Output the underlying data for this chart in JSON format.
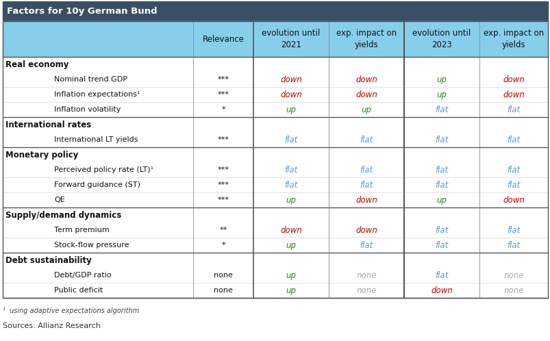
{
  "title": "Factors for 10y German Bund",
  "title_bg": "#3a4f63",
  "title_color": "#ffffff",
  "header_bg": "#87ceeb",
  "sections": [
    {
      "name": "Real economy",
      "rows": [
        {
          "factor": "Nominal trend GDP",
          "relevance": "***",
          "evo2021": "down",
          "evo2021_color": "#cc0000",
          "imp2021": "down",
          "imp2021_color": "#cc0000",
          "evo2023": "up",
          "evo2023_color": "#228B22",
          "imp2023": "down",
          "imp2023_color": "#cc0000"
        },
        {
          "factor": "Inflation expectations¹",
          "relevance": "***",
          "evo2021": "down",
          "evo2021_color": "#cc0000",
          "imp2021": "down",
          "imp2021_color": "#cc0000",
          "evo2023": "up",
          "evo2023_color": "#228B22",
          "imp2023": "down",
          "imp2023_color": "#cc0000"
        },
        {
          "factor": "Inflation volatility",
          "relevance": "*",
          "evo2021": "up",
          "evo2021_color": "#228B22",
          "imp2021": "up",
          "imp2021_color": "#228B22",
          "evo2023": "flat",
          "evo2023_color": "#5b9bd5",
          "imp2023": "flat",
          "imp2023_color": "#5b9bd5"
        }
      ]
    },
    {
      "name": "International rates",
      "rows": [
        {
          "factor": "International LT yields",
          "relevance": "***",
          "evo2021": "flat",
          "evo2021_color": "#5b9bd5",
          "imp2021": "flat",
          "imp2021_color": "#5b9bd5",
          "evo2023": "flat",
          "evo2023_color": "#5b9bd5",
          "imp2023": "flat",
          "imp2023_color": "#5b9bd5"
        }
      ]
    },
    {
      "name": "Monetary policy",
      "rows": [
        {
          "factor": "Perceived policy rate (LT)¹",
          "relevance": "***",
          "evo2021": "flat",
          "evo2021_color": "#5b9bd5",
          "imp2021": "flat",
          "imp2021_color": "#5b9bd5",
          "evo2023": "flat",
          "evo2023_color": "#5b9bd5",
          "imp2023": "flat",
          "imp2023_color": "#5b9bd5"
        },
        {
          "factor": "Forward guidance (ST)",
          "relevance": "***",
          "evo2021": "flat",
          "evo2021_color": "#5b9bd5",
          "imp2021": "flat",
          "imp2021_color": "#5b9bd5",
          "evo2023": "flat",
          "evo2023_color": "#5b9bd5",
          "imp2023": "flat",
          "imp2023_color": "#5b9bd5"
        },
        {
          "factor": "QE",
          "relevance": "***",
          "evo2021": "up",
          "evo2021_color": "#228B22",
          "imp2021": "down",
          "imp2021_color": "#cc0000",
          "evo2023": "up",
          "evo2023_color": "#228B22",
          "imp2023": "down",
          "imp2023_color": "#cc0000"
        }
      ]
    },
    {
      "name": "Supply/demand dynamics",
      "rows": [
        {
          "factor": "Term premium",
          "relevance": "**",
          "evo2021": "down",
          "evo2021_color": "#cc0000",
          "imp2021": "down",
          "imp2021_color": "#cc0000",
          "evo2023": "flat",
          "evo2023_color": "#5b9bd5",
          "imp2023": "flat",
          "imp2023_color": "#5b9bd5"
        },
        {
          "factor": "Stock-flow pressure",
          "relevance": "*",
          "evo2021": "up",
          "evo2021_color": "#228B22",
          "imp2021": "flat",
          "imp2021_color": "#5b9bd5",
          "evo2023": "flat",
          "evo2023_color": "#5b9bd5",
          "imp2023": "flat",
          "imp2023_color": "#5b9bd5"
        }
      ]
    },
    {
      "name": "Debt sustainability",
      "rows": [
        {
          "factor": "Debt/GDP ratio",
          "relevance": "none",
          "evo2021": "up",
          "evo2021_color": "#228B22",
          "imp2021": "none",
          "imp2021_color": "#aaaaaa",
          "evo2023": "flat",
          "evo2023_color": "#5b9bd5",
          "imp2023": "none",
          "imp2023_color": "#aaaaaa"
        },
        {
          "factor": "Public deficit",
          "relevance": "none",
          "evo2021": "up",
          "evo2021_color": "#228B22",
          "imp2021": "none",
          "imp2021_color": "#aaaaaa",
          "evo2023": "down",
          "evo2023_color": "#cc0000",
          "imp2023": "none",
          "imp2023_color": "#aaaaaa"
        }
      ]
    }
  ],
  "footnote": "¹  using adaptive expectations algorithm",
  "source": "Sources: Allianz Research"
}
